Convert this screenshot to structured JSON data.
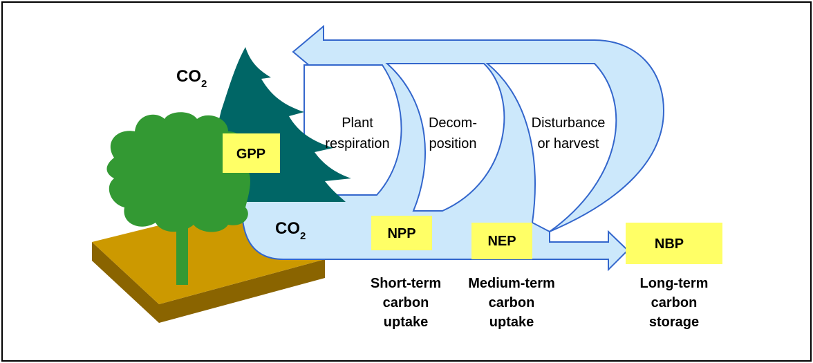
{
  "co2_labels": [
    {
      "text": "CO",
      "subscript": "2"
    },
    {
      "text": "CO",
      "subscript": "2"
    }
  ],
  "flux_boxes": [
    {
      "label": "GPP"
    },
    {
      "label": "NPP"
    },
    {
      "label": "NEP"
    },
    {
      "label": "NBP"
    }
  ],
  "processes": [
    {
      "lines": [
        "Plant",
        "respiration"
      ]
    },
    {
      "lines": [
        "Decom-",
        "position"
      ]
    },
    {
      "lines": [
        "Disturbance",
        "or harvest"
      ]
    }
  ],
  "storage_labels": [
    {
      "lines": [
        "Short-term",
        "carbon",
        "uptake"
      ]
    },
    {
      "lines": [
        "Medium-term",
        "carbon",
        "uptake"
      ]
    },
    {
      "lines": [
        "Long-term",
        "carbon",
        "storage"
      ]
    }
  ]
}
